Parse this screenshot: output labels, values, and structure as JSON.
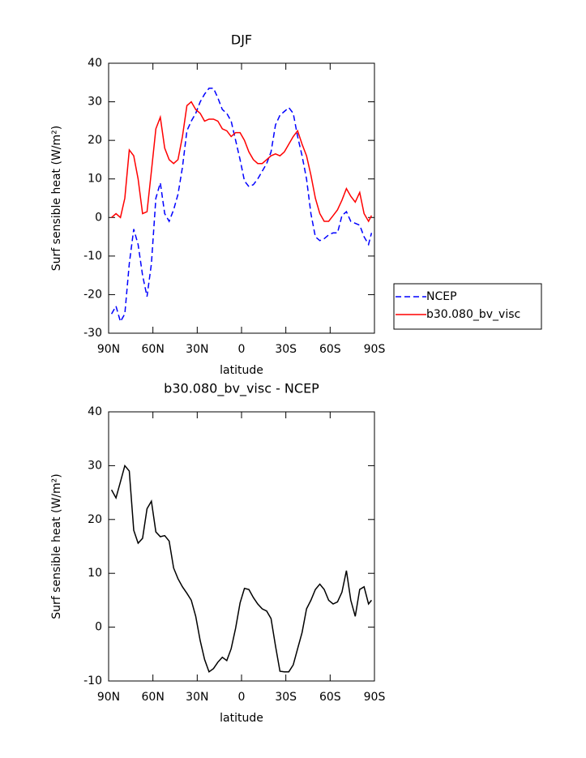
{
  "chart_data": [
    {
      "type": "line",
      "title": "DJF",
      "xlabel": "latitude",
      "ylabel": "Surf sensible heat (W/m²)",
      "x": [
        88,
        85,
        82,
        79,
        76,
        73,
        70,
        67,
        64,
        61,
        58,
        55,
        52,
        49,
        46,
        43,
        40,
        37,
        34,
        31,
        28,
        25,
        22,
        19,
        16,
        13,
        10,
        7,
        4,
        1,
        -2,
        -5,
        -8,
        -11,
        -14,
        -17,
        -20,
        -23,
        -26,
        -29,
        -32,
        -35,
        -38,
        -41,
        -44,
        -47,
        -50,
        -53,
        -56,
        -59,
        -62,
        -65,
        -68,
        -71,
        -74,
        -77,
        -80,
        -83,
        -86,
        -88
      ],
      "series": [
        {
          "name": "NCEP",
          "color": "#0000ff",
          "linestyle": "dashed",
          "values": [
            -25,
            -23,
            -27,
            -25,
            -12,
            -3,
            -7,
            -15,
            -20.5,
            -12,
            5,
            9,
            1,
            -1,
            2,
            6,
            13,
            22.5,
            25,
            27,
            30,
            32,
            33.5,
            33.5,
            31,
            28,
            27,
            25,
            20,
            15,
            9.5,
            8,
            8.5,
            10,
            12,
            14,
            17,
            24,
            26.5,
            27.5,
            28.5,
            27,
            21,
            16,
            10,
            1,
            -5,
            -6,
            -5.5,
            -4.5,
            -4,
            -4,
            0.5,
            1.5,
            -1,
            -1.5,
            -2,
            -5,
            -7,
            -4
          ]
        },
        {
          "name": "b30.080_bv_visc",
          "color": "#ff0000",
          "linestyle": "solid",
          "values": [
            0,
            1,
            0,
            5,
            17.5,
            16,
            10,
            1,
            1.5,
            12,
            23,
            26,
            18,
            15,
            14,
            15,
            21,
            29,
            30,
            28,
            27,
            25,
            25.5,
            25.5,
            25,
            23,
            22.5,
            21,
            22,
            22,
            20,
            17,
            15,
            14,
            14,
            15,
            16,
            16.5,
            16,
            17,
            19,
            21,
            22.5,
            19,
            16,
            11,
            5,
            1,
            -1,
            -1,
            0.5,
            2,
            4.5,
            7.5,
            5.5,
            4,
            6.5,
            1,
            -1,
            0.5
          ]
        }
      ],
      "xlim": [
        90,
        -90
      ],
      "xticks": [
        {
          "value": 90,
          "label": "90N"
        },
        {
          "value": 60,
          "label": "60N"
        },
        {
          "value": 30,
          "label": "30N"
        },
        0,
        {
          "value": -30,
          "label": "30S"
        },
        {
          "value": -60,
          "label": "60S"
        },
        {
          "value": -90,
          "label": "90S"
        }
      ],
      "ylim": [
        -30,
        40
      ],
      "yticks": [
        -30,
        -20,
        -10,
        0,
        10,
        20,
        30,
        40
      ],
      "legend": "right"
    },
    {
      "type": "line",
      "title": "b30.080_bv_visc - NCEP",
      "xlabel": "latitude",
      "ylabel": "Surf sensible heat (W/m²)",
      "x": [
        88,
        85,
        82,
        79,
        76,
        73,
        70,
        67,
        64,
        61,
        58,
        55,
        52,
        49,
        46,
        43,
        40,
        37,
        34,
        31,
        28,
        25,
        22,
        19,
        16,
        13,
        10,
        7,
        4,
        1,
        -2,
        -5,
        -8,
        -11,
        -14,
        -17,
        -20,
        -23,
        -26,
        -29,
        -32,
        -35,
        -38,
        -41,
        -44,
        -47,
        -50,
        -53,
        -56,
        -59,
        -62,
        -65,
        -68,
        -71,
        -74,
        -77,
        -80,
        -83,
        -86,
        -88
      ],
      "series": [
        {
          "color": "#000000",
          "linestyle": "solid",
          "values": [
            25.5,
            24,
            27,
            30,
            29,
            18,
            15.6,
            16.5,
            22,
            23.4,
            17.7,
            16.8,
            17,
            16,
            11,
            9,
            7.5,
            6.3,
            5,
            2,
            -2.5,
            -6,
            -8.3,
            -7.7,
            -6.5,
            -5.6,
            -6.2,
            -4,
            -0.2,
            4.5,
            7.2,
            7,
            5.5,
            4.3,
            3.4,
            3,
            1.6,
            -3.5,
            -8.2,
            -8.3,
            -8.3,
            -7,
            -4,
            -1,
            3.4,
            5,
            7,
            8,
            7,
            5,
            4.3,
            4.7,
            6.5,
            10.5,
            5,
            2,
            7,
            7.5,
            4.3,
            5
          ]
        }
      ],
      "xlim": [
        90,
        -90
      ],
      "xticks": [
        {
          "value": 90,
          "label": "90N"
        },
        {
          "value": 60,
          "label": "60N"
        },
        {
          "value": 30,
          "label": "30N"
        },
        0,
        {
          "value": -30,
          "label": "30S"
        },
        {
          "value": -60,
          "label": "60S"
        },
        {
          "value": -90,
          "label": "90S"
        }
      ],
      "ylim": [
        -10,
        40
      ],
      "yticks": [
        -10,
        0,
        10,
        20,
        30,
        40
      ]
    }
  ]
}
